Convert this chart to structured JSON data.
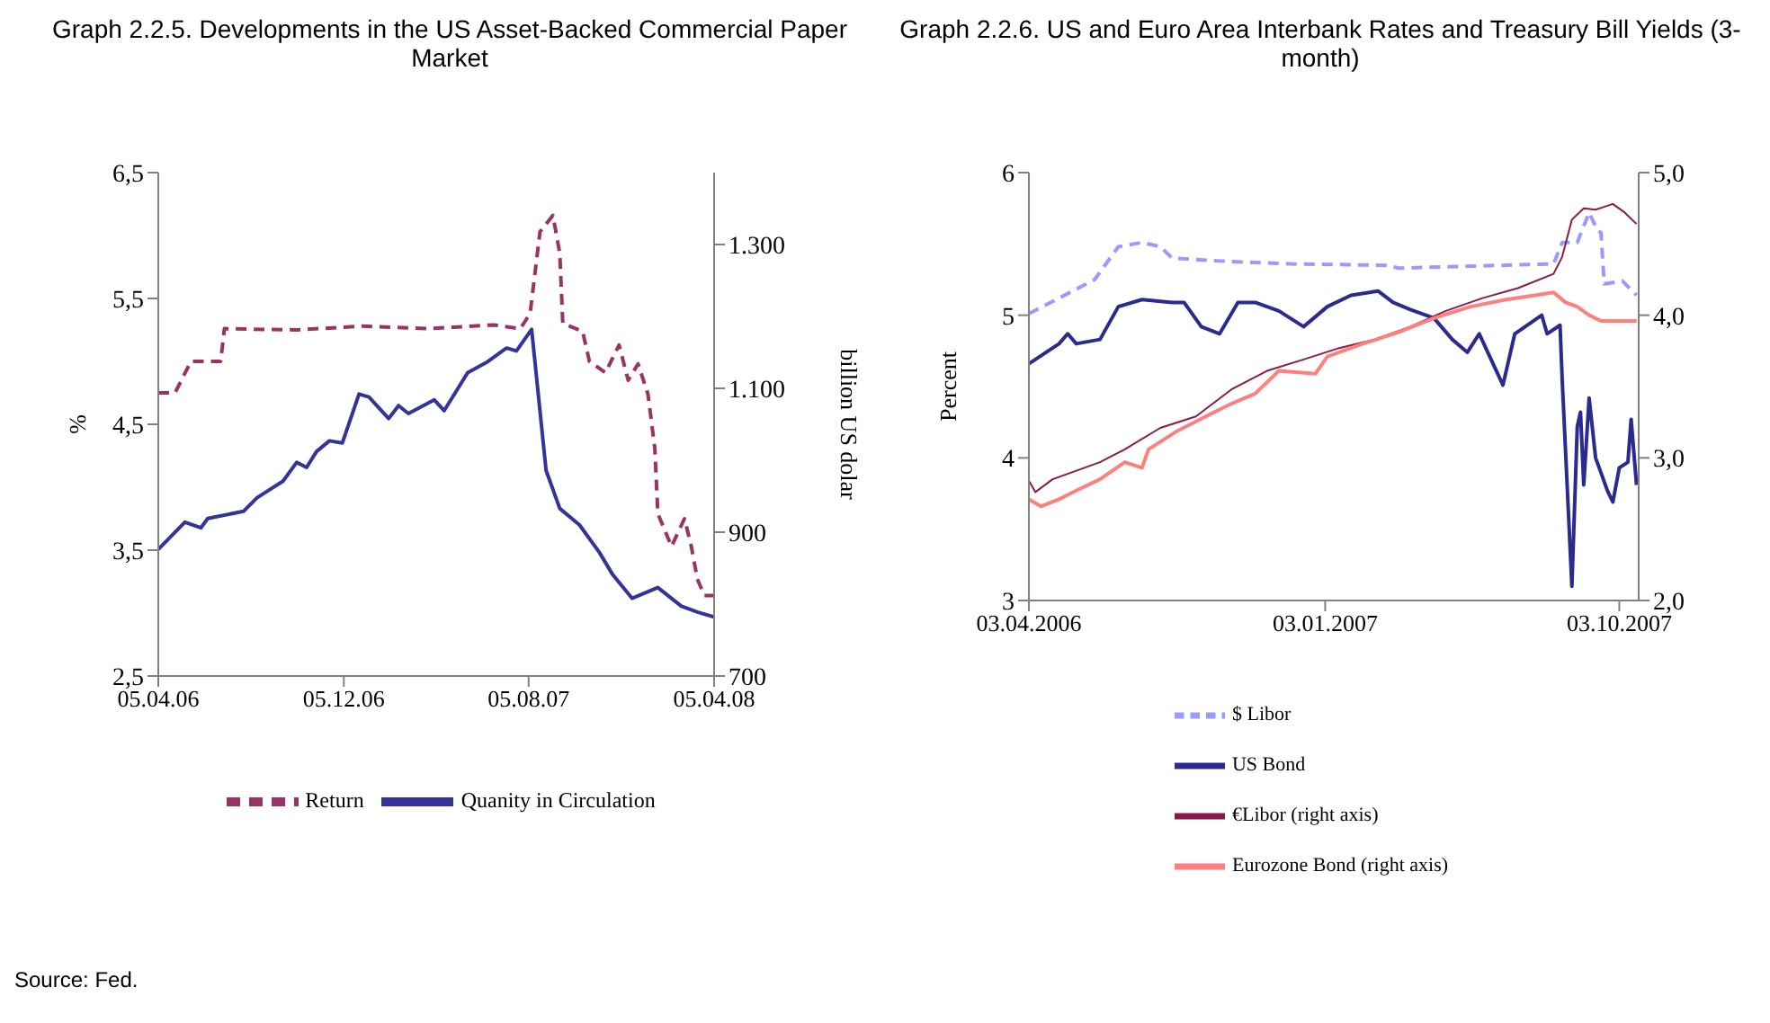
{
  "chart_data": [
    {
      "type": "line",
      "title": "Graph 2.2.5.  Developments in the US Asset-Backed Commercial Paper Market",
      "ylabel": "%",
      "y2label": "billion US dolar",
      "xlim": [
        "2006-04-05",
        "2008-04-05"
      ],
      "xticks": [
        {
          "value": "2006-04-05",
          "label": "05.04.06"
        },
        {
          "value": "2006-12-05",
          "label": "05.12.06"
        },
        {
          "value": "2007-08-05",
          "label": "05.08.07"
        },
        {
          "value": "2008-04-05",
          "label": "05.04.08"
        }
      ],
      "ylim": [
        2.5,
        6.5
      ],
      "yticks": [
        {
          "value": 2.5,
          "label": "2,5"
        },
        {
          "value": 3.5,
          "label": "3,5"
        },
        {
          "value": 4.5,
          "label": "4,5"
        },
        {
          "value": 5.5,
          "label": "5,5"
        },
        {
          "value": 6.5,
          "label": "6,5"
        }
      ],
      "y2lim": [
        700,
        1400
      ],
      "y2ticks": [
        700,
        900,
        {
          "value": 1100,
          "label": "1.100"
        },
        {
          "value": 1300,
          "label": "1.300"
        }
      ],
      "legend": "bottom",
      "annotations": [
        "Source: Fed."
      ],
      "series": [
        {
          "name": "Return",
          "color": "#993366",
          "line_style": "dashed",
          "x": [
            "2006-04-05",
            "2006-04-27",
            "2006-05-18",
            "2006-06-26",
            "2006-07-01",
            "2006-10-04",
            "2006-12-29",
            "2007-03-26",
            "2007-06-20",
            "2007-07-25",
            "2007-08-07",
            "2007-08-20",
            "2007-09-06",
            "2007-09-15",
            "2007-09-19",
            "2007-10-15",
            "2007-10-24",
            "2007-11-14",
            "2007-12-02",
            "2007-12-14",
            "2007-12-27",
            "2008-01-09",
            "2008-01-18",
            "2008-01-22",
            "2008-02-09",
            "2008-02-26",
            "2008-03-06",
            "2008-03-14",
            "2008-03-23",
            "2008-04-05"
          ],
          "values": [
            4.75,
            4.75,
            5.0,
            5.0,
            5.26,
            5.25,
            5.28,
            5.26,
            5.29,
            5.26,
            5.38,
            6.03,
            6.16,
            5.86,
            5.3,
            5.24,
            5.0,
            4.91,
            5.13,
            4.85,
            4.98,
            4.74,
            4.31,
            3.79,
            3.53,
            3.75,
            3.53,
            3.27,
            3.14,
            3.14
          ]
        },
        {
          "name": "Quanity in Circulation",
          "color": "#333399",
          "line_style": "solid",
          "axis": "y2",
          "x": [
            "2006-04-05",
            "2006-05-10",
            "2006-05-31",
            "2006-06-09",
            "2006-07-26",
            "2006-08-13",
            "2006-09-16",
            "2006-10-04",
            "2006-10-17",
            "2006-10-30",
            "2006-11-16",
            "2006-12-03",
            "2006-12-25",
            "2007-01-07",
            "2007-02-02",
            "2007-02-15",
            "2007-02-28",
            "2007-04-03",
            "2007-04-16",
            "2007-05-17",
            "2007-06-12",
            "2007-07-07",
            "2007-07-20",
            "2007-08-09",
            "2007-08-28",
            "2007-09-15",
            "2007-10-11",
            "2007-11-06",
            "2007-11-23",
            "2007-12-19",
            "2008-01-22",
            "2008-02-22",
            "2008-03-14",
            "2008-04-05"
          ],
          "values": [
            876,
            914,
            906,
            919,
            929,
            948,
            971,
            997,
            990,
            1012,
            1027,
            1024,
            1092,
            1088,
            1058,
            1076,
            1065,
            1084,
            1069,
            1122,
            1137,
            1156,
            1152,
            1182,
            986,
            933,
            910,
            872,
            842,
            808,
            823,
            797,
            789,
            782
          ]
        }
      ]
    },
    {
      "type": "line",
      "title": "Graph 2.2.6. US and Euro Area Interbank Rates and Treasury Bill Yields (3-month)",
      "ylabel": "Percent",
      "xlim": [
        "2006-04-03",
        "2007-10-21"
      ],
      "xticks": [
        {
          "value": "2006-04-03",
          "label": "03.04.2006"
        },
        {
          "value": "2007-01-03",
          "label": "03.01.2007"
        },
        {
          "value": "2007-10-03",
          "label": "03.10.2007"
        }
      ],
      "ylim": [
        3,
        6
      ],
      "yticks": [
        3,
        4,
        5,
        6
      ],
      "y2lim": [
        2,
        5
      ],
      "y2ticks": [
        {
          "value": 2,
          "label": "2,0"
        },
        {
          "value": 3,
          "label": "3,0"
        },
        {
          "value": 4,
          "label": "4,0"
        },
        {
          "value": 5,
          "label": "5,0"
        }
      ],
      "legend": "bottom",
      "series": [
        {
          "name": "$ Libor",
          "color": "#9999ff",
          "line_style": "dashed",
          "x": [
            "2006-04-03",
            "2006-05-01",
            "2006-06-03",
            "2006-06-25",
            "2006-07-17",
            "2006-08-03",
            "2006-08-14",
            "2006-09-27",
            "2006-12-02",
            "2007-03-01",
            "2007-03-12",
            "2007-08-03",
            "2007-08-11",
            "2007-08-25",
            "2007-09-05",
            "2007-09-13",
            "2007-09-16",
            "2007-09-19",
            "2007-10-06",
            "2007-10-19"
          ],
          "values": [
            5.01,
            5.12,
            5.25,
            5.48,
            5.51,
            5.48,
            5.4,
            5.38,
            5.36,
            5.35,
            5.33,
            5.36,
            5.51,
            5.51,
            5.72,
            5.59,
            5.58,
            5.22,
            5.24,
            5.14
          ]
        },
        {
          "name": "US Bond",
          "color": "#2b2b8f",
          "line_style": "solid",
          "x": [
            "2006-04-03",
            "2006-05-01",
            "2006-05-09",
            "2006-05-17",
            "2006-06-08",
            "2006-06-25",
            "2006-07-17",
            "2006-08-14",
            "2006-08-25",
            "2006-09-10",
            "2006-09-27",
            "2006-10-14",
            "2006-10-30",
            "2006-11-21",
            "2006-12-14",
            "2007-01-05",
            "2007-01-27",
            "2007-02-21",
            "2007-03-07",
            "2007-03-23",
            "2007-04-14",
            "2007-05-01",
            "2007-05-15",
            "2007-05-26",
            "2007-06-17",
            "2007-06-28",
            "2007-07-23",
            "2007-07-28",
            "2007-08-09",
            "2007-08-11",
            "2007-08-20",
            "2007-08-25",
            "2007-08-28",
            "2007-08-31",
            "2007-09-05",
            "2007-09-11",
            "2007-09-22",
            "2007-09-27",
            "2007-10-03",
            "2007-10-11",
            "2007-10-14",
            "2007-10-19"
          ],
          "values": [
            4.66,
            4.8,
            4.87,
            4.8,
            4.83,
            5.06,
            5.11,
            5.09,
            5.09,
            4.92,
            4.87,
            5.09,
            5.09,
            5.03,
            4.92,
            5.06,
            5.14,
            5.17,
            5.09,
            5.04,
            4.98,
            4.83,
            4.74,
            4.87,
            4.51,
            4.87,
            5.0,
            4.87,
            4.93,
            4.55,
            3.1,
            4.22,
            4.32,
            3.81,
            4.42,
            4.0,
            3.77,
            3.69,
            3.93,
            3.97,
            4.27,
            3.81
          ]
        },
        {
          "name": "€Libor (right axis)",
          "color": "#8b1a4a",
          "line_style": "solid",
          "axis": "y2",
          "x": [
            "2006-04-03",
            "2006-04-09",
            "2006-04-25",
            "2006-06-08",
            "2006-07-01",
            "2006-08-03",
            "2006-09-05",
            "2006-10-08",
            "2006-11-10",
            "2006-12-14",
            "2007-01-16",
            "2007-02-18",
            "2007-03-23",
            "2007-04-25",
            "2007-05-29",
            "2007-07-01",
            "2007-08-03",
            "2007-08-11",
            "2007-08-20",
            "2007-08-31",
            "2007-09-11",
            "2007-09-27",
            "2007-10-08",
            "2007-10-19"
          ],
          "values": [
            2.84,
            2.76,
            2.85,
            2.97,
            3.06,
            3.21,
            3.29,
            3.48,
            3.61,
            3.69,
            3.77,
            3.83,
            3.92,
            4.03,
            4.12,
            4.19,
            4.29,
            4.41,
            4.67,
            4.75,
            4.74,
            4.78,
            4.72,
            4.64
          ]
        },
        {
          "name": "Eurozone Bond (right axis)",
          "color": "#ff7f7f",
          "line_style": "solid",
          "axis": "y2",
          "x": [
            "2006-04-03",
            "2006-04-14",
            "2006-05-01",
            "2006-05-17",
            "2006-06-08",
            "2006-07-01",
            "2006-07-17",
            "2006-07-23",
            "2006-08-19",
            "2006-09-22",
            "2006-10-08",
            "2006-10-30",
            "2006-11-21",
            "2006-12-25",
            "2007-01-05",
            "2007-02-07",
            "2007-03-12",
            "2007-04-14",
            "2007-05-18",
            "2007-06-20",
            "2007-07-17",
            "2007-08-03",
            "2007-08-14",
            "2007-08-25",
            "2007-09-05",
            "2007-09-16",
            "2007-10-19"
          ],
          "values": [
            2.71,
            2.66,
            2.71,
            2.77,
            2.85,
            2.97,
            2.93,
            3.06,
            3.19,
            3.32,
            3.38,
            3.45,
            3.61,
            3.59,
            3.71,
            3.8,
            3.88,
            3.98,
            4.06,
            4.11,
            4.14,
            4.16,
            4.09,
            4.06,
            4.0,
            3.96,
            3.96
          ]
        }
      ]
    }
  ]
}
